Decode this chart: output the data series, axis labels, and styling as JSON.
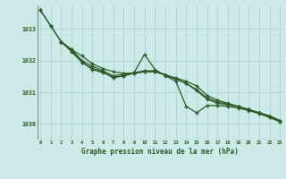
{
  "title": "Graphe pression niveau de la mer (hPa)",
  "background_color": "#cceae7",
  "grid_color": "#b8d8d5",
  "line_color": "#2d5a27",
  "x_ticks": [
    0,
    1,
    2,
    3,
    4,
    5,
    6,
    7,
    8,
    9,
    10,
    11,
    12,
    13,
    14,
    15,
    16,
    17,
    18,
    19,
    20,
    21,
    22,
    23
  ],
  "ylim": [
    1029.5,
    1033.75
  ],
  "yticks": [
    1030,
    1031,
    1032,
    1033
  ],
  "series1_x": [
    0,
    1,
    2,
    3,
    4,
    5,
    6,
    7,
    8,
    9,
    10,
    11,
    12,
    13,
    14,
    15,
    16,
    17,
    18,
    19,
    20,
    21,
    22,
    23
  ],
  "series1": [
    1033.6,
    1033.1,
    1032.6,
    1032.35,
    1032.15,
    1031.9,
    1031.75,
    1031.65,
    1031.6,
    1031.6,
    1031.65,
    1031.65,
    1031.55,
    1031.45,
    1031.35,
    1031.2,
    1030.9,
    1030.75,
    1030.65,
    1030.55,
    1030.45,
    1030.35,
    1030.25,
    1030.1
  ],
  "series2_x": [
    0,
    1,
    2,
    3,
    4,
    5,
    6,
    7,
    8,
    9,
    10,
    11,
    12,
    13,
    14,
    15,
    16,
    17,
    18,
    19,
    20,
    21,
    22,
    23
  ],
  "series2": [
    1033.6,
    1033.1,
    1032.6,
    1032.35,
    1032.0,
    1031.82,
    1031.68,
    1031.52,
    1031.57,
    1031.62,
    1031.68,
    1031.68,
    1031.55,
    1031.42,
    1031.28,
    1031.08,
    1030.82,
    1030.7,
    1030.62,
    1030.55,
    1030.45,
    1030.35,
    1030.25,
    1030.1
  ],
  "series3_x": [
    2,
    3,
    4,
    5,
    6,
    7,
    8,
    9,
    10,
    11,
    12,
    13,
    14,
    15,
    16,
    17,
    18,
    19,
    20,
    21,
    22,
    23
  ],
  "series3": [
    1032.6,
    1032.32,
    1031.95,
    1031.72,
    1031.62,
    1031.48,
    1031.52,
    1031.6,
    1031.65,
    1031.65,
    1031.55,
    1031.42,
    1031.28,
    1031.05,
    1030.78,
    1030.65,
    1030.6,
    1030.55,
    1030.45,
    1030.35,
    1030.22,
    1030.07
  ],
  "series4_x": [
    2,
    3,
    4,
    5,
    6,
    7,
    8,
    9,
    10,
    11,
    12,
    13,
    14,
    15,
    16,
    17,
    18,
    19,
    20,
    21,
    22,
    23
  ],
  "series4": [
    1032.6,
    1032.28,
    1031.95,
    1031.75,
    1031.65,
    1031.45,
    1031.52,
    1031.62,
    1032.2,
    1031.72,
    1031.52,
    1031.35,
    1030.55,
    1030.35,
    1030.58,
    1030.58,
    1030.55,
    1030.5,
    1030.42,
    1030.32,
    1030.2,
    1030.07
  ]
}
